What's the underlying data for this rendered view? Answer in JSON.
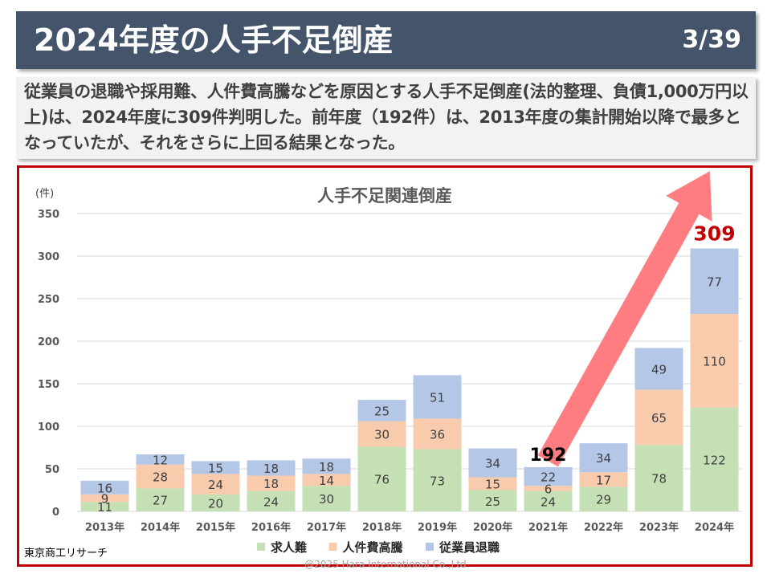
{
  "slide": {
    "title": "2024年度の人手不足倒産",
    "page_number": "3/39",
    "summary": "従業員の退職や採用難、人件費高騰などを原因とする人手不足倒産(法的整理、負債1,000万円以上)は、2024年度に309件判明した。前年度（192件）は、2013年度の集計開始以降で最多となっていたが、それをさらに上回る結果となった。",
    "source": "東京商工リサーチ",
    "copyright": "@2025 Hara International Co.,Ltd"
  },
  "chart_data": {
    "type": "bar",
    "stacked": true,
    "title": "人手不足関連倒産",
    "ylabel": "(件)",
    "ylim": [
      0,
      350
    ],
    "yticks": [
      0,
      50,
      100,
      150,
      200,
      250,
      300,
      350
    ],
    "grid": true,
    "legend_position": "bottom",
    "categories": [
      "2013年",
      "2014年",
      "2015年",
      "2016年",
      "2017年",
      "2018年",
      "2019年",
      "2020年",
      "2021年",
      "2022年",
      "2023年",
      "2024年"
    ],
    "series": [
      {
        "name": "求人難",
        "color": "#c5e0b4",
        "values": [
          11,
          27,
          20,
          24,
          30,
          76,
          73,
          25,
          24,
          29,
          78,
          122
        ]
      },
      {
        "name": "人件費高騰",
        "color": "#f8cbad",
        "values": [
          9,
          28,
          24,
          18,
          14,
          30,
          36,
          15,
          6,
          17,
          65,
          110
        ]
      },
      {
        "name": "従業員退職",
        "color": "#b4c7e7",
        "values": [
          16,
          12,
          15,
          18,
          18,
          25,
          51,
          34,
          22,
          34,
          49,
          77
        ]
      }
    ],
    "annotations": [
      {
        "text": "192",
        "category": "2021年",
        "color": "#000000"
      },
      {
        "text": "309",
        "category": "2024年",
        "color": "#c00000"
      }
    ],
    "arrow": {
      "from_category": "2021年",
      "to_category": "2024年",
      "color": "#ff7c80"
    }
  }
}
